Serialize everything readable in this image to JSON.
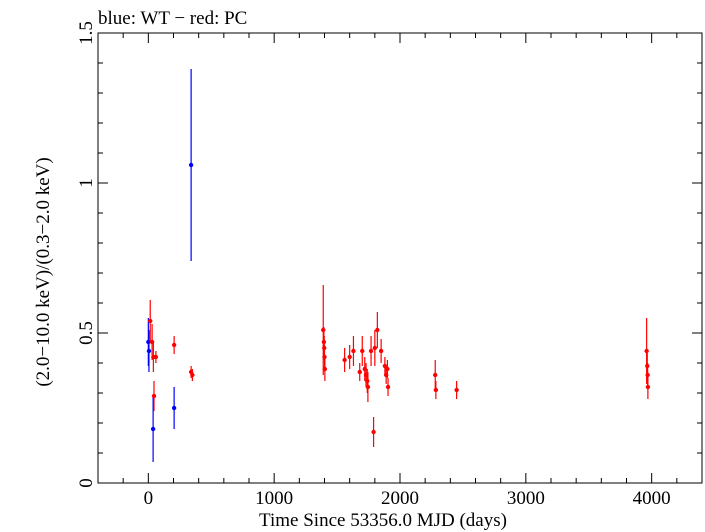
{
  "chart_data": {
    "type": "scatter",
    "title": "blue: WT − red: PC",
    "xlabel": "Time Since 53356.0 MJD (days)",
    "ylabel": "(2.0−10.0 keV)/(0.3−2.0 keV)",
    "xlim": [
      -400,
      4400
    ],
    "ylim": [
      0,
      1.5
    ],
    "x_ticks": [
      0,
      1000,
      2000,
      3000,
      4000
    ],
    "x_tick_labels": [
      "0",
      "1000",
      "2000",
      "3000",
      "4000"
    ],
    "y_ticks": [
      0,
      0.5,
      1,
      1.5
    ],
    "y_tick_labels": [
      "0",
      "0.5",
      "1",
      "1.5"
    ],
    "grid": false,
    "series": [
      {
        "name": "WT",
        "color": "#0000ff",
        "points": [
          {
            "x": 0,
            "y": 0.47,
            "err": 0.08
          },
          {
            "x": 5,
            "y": 0.44,
            "err": 0.07
          },
          {
            "x": 38,
            "y": 0.18,
            "err": 0.11
          },
          {
            "x": 205,
            "y": 0.25,
            "err": 0.07
          },
          {
            "x": 340,
            "y": 1.06,
            "err": 0.32
          }
        ]
      },
      {
        "name": "PC",
        "color": "#ff0000",
        "points": [
          {
            "x": 15,
            "y": 0.54,
            "err": 0.07
          },
          {
            "x": 30,
            "y": 0.47,
            "err": 0.06
          },
          {
            "x": 40,
            "y": 0.42,
            "err": 0.05
          },
          {
            "x": 45,
            "y": 0.29,
            "err": 0.05
          },
          {
            "x": 60,
            "y": 0.42,
            "err": 0.02
          },
          {
            "x": 205,
            "y": 0.46,
            "err": 0.03
          },
          {
            "x": 340,
            "y": 0.37,
            "err": 0.02
          },
          {
            "x": 350,
            "y": 0.36,
            "err": 0.02
          },
          {
            "x": 1390,
            "y": 0.51,
            "err": 0.15
          },
          {
            "x": 1395,
            "y": 0.47,
            "err": 0.05
          },
          {
            "x": 1398,
            "y": 0.45,
            "err": 0.04
          },
          {
            "x": 1400,
            "y": 0.42,
            "err": 0.04
          },
          {
            "x": 1403,
            "y": 0.38,
            "err": 0.04
          },
          {
            "x": 1560,
            "y": 0.41,
            "err": 0.04
          },
          {
            "x": 1600,
            "y": 0.42,
            "err": 0.04
          },
          {
            "x": 1630,
            "y": 0.44,
            "err": 0.05
          },
          {
            "x": 1680,
            "y": 0.37,
            "err": 0.03
          },
          {
            "x": 1700,
            "y": 0.44,
            "err": 0.05
          },
          {
            "x": 1720,
            "y": 0.38,
            "err": 0.04
          },
          {
            "x": 1730,
            "y": 0.36,
            "err": 0.04
          },
          {
            "x": 1740,
            "y": 0.34,
            "err": 0.04
          },
          {
            "x": 1745,
            "y": 0.32,
            "err": 0.05
          },
          {
            "x": 1770,
            "y": 0.44,
            "err": 0.05
          },
          {
            "x": 1790,
            "y": 0.17,
            "err": 0.05
          },
          {
            "x": 1800,
            "y": 0.45,
            "err": 0.06
          },
          {
            "x": 1820,
            "y": 0.51,
            "err": 0.06
          },
          {
            "x": 1850,
            "y": 0.44,
            "err": 0.04
          },
          {
            "x": 1880,
            "y": 0.39,
            "err": 0.03
          },
          {
            "x": 1890,
            "y": 0.36,
            "err": 0.03
          },
          {
            "x": 1900,
            "y": 0.38,
            "err": 0.03
          },
          {
            "x": 1905,
            "y": 0.32,
            "err": 0.03
          },
          {
            "x": 2280,
            "y": 0.36,
            "err": 0.05
          },
          {
            "x": 2285,
            "y": 0.31,
            "err": 0.03
          },
          {
            "x": 2450,
            "y": 0.31,
            "err": 0.03
          },
          {
            "x": 3960,
            "y": 0.44,
            "err": 0.11
          },
          {
            "x": 3965,
            "y": 0.39,
            "err": 0.05
          },
          {
            "x": 3968,
            "y": 0.36,
            "err": 0.04
          },
          {
            "x": 3970,
            "y": 0.32,
            "err": 0.04
          }
        ]
      }
    ]
  }
}
